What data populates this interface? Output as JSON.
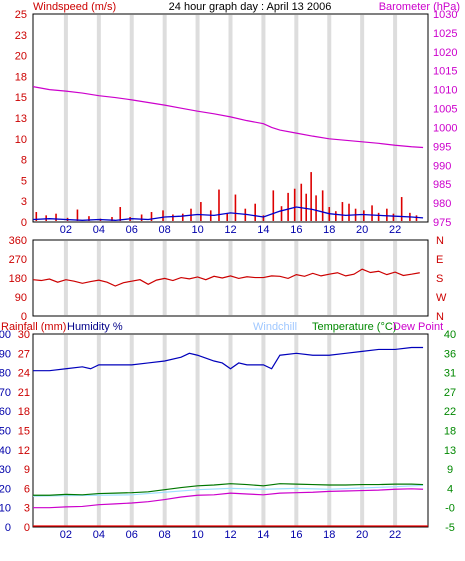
{
  "chart_data": [
    {
      "type": "bar+line",
      "title": "24 hour graph day : April 13 2006",
      "ylabel_left": "Windspeed (m/s)",
      "ylabel_right": "Barometer (hPa)",
      "ylim_left": [
        0,
        25
      ],
      "ylim_right": [
        975,
        1030
      ],
      "yticks_left": [
        "0",
        "3",
        "5",
        "8",
        "10",
        "13",
        "15",
        "18",
        "20",
        "23",
        "25"
      ],
      "yticks_right": [
        "975",
        "980",
        "985",
        "990",
        "995",
        "1000",
        "1005",
        "1010",
        "1015",
        "1020",
        "1025",
        "1030"
      ],
      "xlim": [
        0,
        24
      ],
      "xticks": [
        "02",
        "04",
        "06",
        "08",
        "10",
        "12",
        "14",
        "16",
        "18",
        "20",
        "22"
      ],
      "grid": "vertical",
      "colors": {
        "gust": "#dd0000",
        "windspeed": "#0000cc",
        "barometer": "#cc00cc",
        "frame": "#000000"
      },
      "series": [
        {
          "name": "Windspeed (m/s)",
          "role": "gust",
          "x": [
            0.2,
            0.8,
            1.4,
            2.1,
            2.7,
            3.4,
            4.1,
            4.8,
            5.3,
            5.9,
            6.6,
            7.2,
            7.9,
            8.5,
            9.1,
            9.6,
            10.2,
            10.8,
            11.3,
            11.8,
            12.3,
            12.9,
            13.5,
            14.0,
            14.6,
            15.1,
            15.5,
            15.9,
            16.3,
            16.6,
            16.9,
            17.2,
            17.6,
            18.0,
            18.4,
            18.8,
            19.2,
            19.6,
            20.1,
            20.6,
            21.0,
            21.5,
            21.9,
            22.4,
            22.9,
            23.3
          ],
          "values": [
            1.2,
            0.8,
            1.0,
            0.5,
            1.5,
            0.7,
            0.4,
            0.6,
            1.8,
            0.6,
            0.9,
            1.2,
            1.4,
            0.9,
            1.0,
            1.6,
            2.4,
            1.4,
            3.9,
            1.0,
            3.3,
            1.6,
            2.2,
            0.8,
            3.8,
            1.9,
            3.5,
            4.0,
            4.6,
            3.4,
            6.0,
            3.2,
            3.8,
            1.8,
            1.3,
            2.4,
            2.2,
            1.6,
            1.4,
            2.0,
            1.1,
            1.6,
            1.0,
            3.0,
            1.1,
            0.8
          ]
        },
        {
          "name": "Windspeed average",
          "role": "windspeed",
          "x": [
            0,
            1,
            2,
            3,
            4,
            5,
            6,
            7,
            8,
            9,
            10,
            11,
            12,
            13,
            14,
            15,
            16,
            17,
            18,
            19,
            20,
            21,
            22,
            23,
            23.7
          ],
          "values": [
            0.3,
            0.4,
            0.3,
            0.2,
            0.3,
            0.2,
            0.4,
            0.3,
            0.6,
            0.7,
            0.9,
            0.8,
            1.1,
            0.9,
            0.6,
            1.3,
            1.8,
            1.5,
            1.0,
            0.8,
            0.9,
            0.8,
            0.7,
            0.6,
            0.5
          ]
        },
        {
          "name": "Barometer (hPa)",
          "role": "barometer",
          "x": [
            0,
            1,
            2,
            3,
            4,
            5,
            6,
            7,
            8,
            9,
            10,
            11,
            12,
            13,
            14,
            14.5,
            15,
            16,
            17,
            18,
            19,
            20,
            21,
            22,
            23,
            23.7
          ],
          "values": [
            1010.8,
            1010.0,
            1009.6,
            1009.1,
            1008.4,
            1007.9,
            1007.3,
            1006.6,
            1005.9,
            1005.1,
            1004.3,
            1003.6,
            1002.8,
            1001.8,
            1001.0,
            1000.0,
            999.3,
            998.5,
            997.7,
            997.0,
            996.6,
            996.2,
            995.8,
            995.3,
            994.9,
            994.7
          ]
        }
      ]
    },
    {
      "type": "line",
      "ylabel_left": "",
      "yticks_left": [
        "0",
        "90",
        "180",
        "270",
        "360"
      ],
      "yticks_right": [
        "N",
        "E",
        "S",
        "W",
        "N"
      ],
      "ylim_left": [
        0,
        360
      ],
      "xlim": [
        0,
        24
      ],
      "colors": {
        "direction": "#cc0000"
      },
      "series": [
        {
          "name": "Wind direction",
          "role": "direction",
          "x": [
            0,
            0.5,
            1,
            1.5,
            2,
            2.5,
            3,
            3.5,
            4,
            4.5,
            5,
            5.5,
            6,
            6.5,
            7,
            7.5,
            8,
            8.5,
            9,
            9.5,
            10,
            10.5,
            11,
            11.5,
            12,
            12.5,
            13,
            13.5,
            14,
            14.5,
            15,
            15.5,
            16,
            16.5,
            17,
            17.5,
            18,
            18.5,
            19,
            19.5,
            20,
            20.5,
            21,
            21.5,
            22,
            22.5,
            23,
            23.5
          ],
          "values": [
            172,
            168,
            175,
            160,
            172,
            165,
            155,
            163,
            170,
            160,
            142,
            158,
            165,
            172,
            150,
            170,
            178,
            168,
            182,
            176,
            185,
            172,
            188,
            180,
            190,
            178,
            186,
            182,
            182,
            190,
            188,
            178,
            196,
            188,
            202,
            190,
            198,
            205,
            190,
            198,
            222,
            206,
            212,
            196,
            208,
            192,
            198,
            205
          ]
        }
      ]
    },
    {
      "type": "line",
      "header_labels": {
        "rainfall": "Rainfall (mm)",
        "humidity": "Humidity %",
        "windchill": "Windchill",
        "temperature": "Temperature (°C)",
        "dewpoint": "Dew Point"
      },
      "yticks_rain": [
        "0",
        "3",
        "6",
        "9",
        "12",
        "15",
        "18",
        "21",
        "24",
        "27",
        "30"
      ],
      "yticks_humidity": [
        "0",
        "10",
        "20",
        "30",
        "40",
        "50",
        "60",
        "70",
        "80",
        "90",
        "100"
      ],
      "yticks_right": [
        "-5",
        "-0",
        "4",
        "9",
        "13",
        "18",
        "22",
        "27",
        "31",
        "36",
        "40"
      ],
      "ylim_humidity": [
        0,
        100
      ],
      "ylim_right": [
        -5,
        40
      ],
      "xlim": [
        0,
        24
      ],
      "xticks": [
        "02",
        "04",
        "06",
        "08",
        "10",
        "12",
        "14",
        "16",
        "18",
        "20",
        "22"
      ],
      "colors": {
        "rain": "#ee0000",
        "humidity": "#0000bb",
        "windchill": "#a0e0ff",
        "temperature": "#007700",
        "dewpoint": "#cc00cc",
        "rain_label": "#cc0000",
        "humidity_label": "#000088",
        "windchill_label": "#a0c8ff",
        "temperature_label": "#008800",
        "dewpoint_label": "#cc00cc"
      },
      "series": [
        {
          "name": "Rainfall (mm)",
          "role": "rain",
          "x": [
            0,
            24
          ],
          "values": [
            0,
            0
          ]
        },
        {
          "name": "Humidity %",
          "role": "humidity",
          "x": [
            0,
            1,
            2,
            3,
            3.5,
            4,
            5,
            6,
            7,
            8,
            9,
            9.5,
            10,
            11,
            11.5,
            12,
            12.5,
            13,
            14,
            14.5,
            15,
            16,
            17,
            18,
            19,
            20,
            21,
            22,
            23,
            23.7
          ],
          "values": [
            81,
            81,
            82,
            83,
            82,
            84,
            84,
            84,
            85,
            86,
            88,
            90,
            89,
            86,
            85,
            82,
            85,
            84,
            84,
            82,
            89,
            90,
            89,
            89,
            90,
            91,
            92,
            92,
            93,
            93
          ]
        },
        {
          "name": "Windchill",
          "role": "windchill",
          "x": [
            0,
            2,
            4,
            6,
            8,
            10,
            12,
            14,
            16,
            18,
            20,
            22,
            23.7
          ],
          "values": [
            2.2,
            2.3,
            2.4,
            2.5,
            3.1,
            3.7,
            4.0,
            3.8,
            4.0,
            3.8,
            4.1,
            4.4,
            4.7
          ]
        },
        {
          "name": "Temperature (°C)",
          "role": "temperature",
          "x": [
            0,
            1,
            2,
            3,
            4,
            5,
            6,
            7,
            8,
            9,
            10,
            11,
            12,
            13,
            14,
            15,
            16,
            17,
            18,
            19,
            20,
            21,
            22,
            23,
            23.7
          ],
          "values": [
            2.4,
            2.4,
            2.6,
            2.5,
            2.8,
            2.9,
            3.0,
            3.2,
            3.7,
            4.2,
            4.6,
            4.8,
            5.1,
            4.9,
            4.6,
            5.1,
            5.0,
            4.9,
            4.8,
            4.8,
            4.9,
            4.9,
            5.0,
            5.0,
            4.9
          ]
        },
        {
          "name": "Dew Point",
          "role": "dewpoint",
          "x": [
            0,
            1,
            2,
            3,
            4,
            5,
            6,
            7,
            8,
            9,
            10,
            11,
            12,
            13,
            14,
            15,
            16,
            17,
            18,
            19,
            20,
            21,
            22,
            23,
            23.7
          ],
          "values": [
            -0.5,
            -0.5,
            -0.3,
            -0.2,
            0.2,
            0.4,
            0.6,
            0.9,
            1.4,
            2.0,
            2.4,
            2.5,
            2.9,
            2.7,
            2.5,
            2.9,
            3.0,
            3.1,
            3.3,
            3.4,
            3.5,
            3.6,
            3.8,
            3.9,
            3.8
          ]
        }
      ]
    }
  ]
}
